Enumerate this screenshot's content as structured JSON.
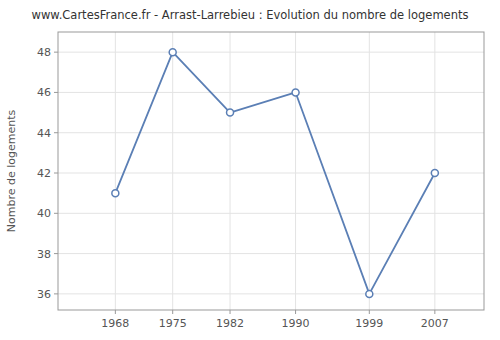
{
  "chart_data": {
    "type": "line",
    "title": "www.CartesFrance.fr - Arrast-Larrebieu : Evolution du nombre de logements",
    "ylabel": "Nombre de logements",
    "x": [
      1968,
      1975,
      1982,
      1990,
      1999,
      2007
    ],
    "values": [
      41,
      48,
      45,
      46,
      36,
      42
    ],
    "color": "#5b7fb5",
    "marker": "circle",
    "xlim": [
      1961,
      2013
    ],
    "xticks": [
      1968,
      1975,
      1982,
      1990,
      1999,
      2007
    ],
    "ylim": [
      35.2,
      49.0
    ],
    "yticks": [
      36,
      38,
      40,
      42,
      44,
      46,
      48
    ],
    "grid": true
  }
}
